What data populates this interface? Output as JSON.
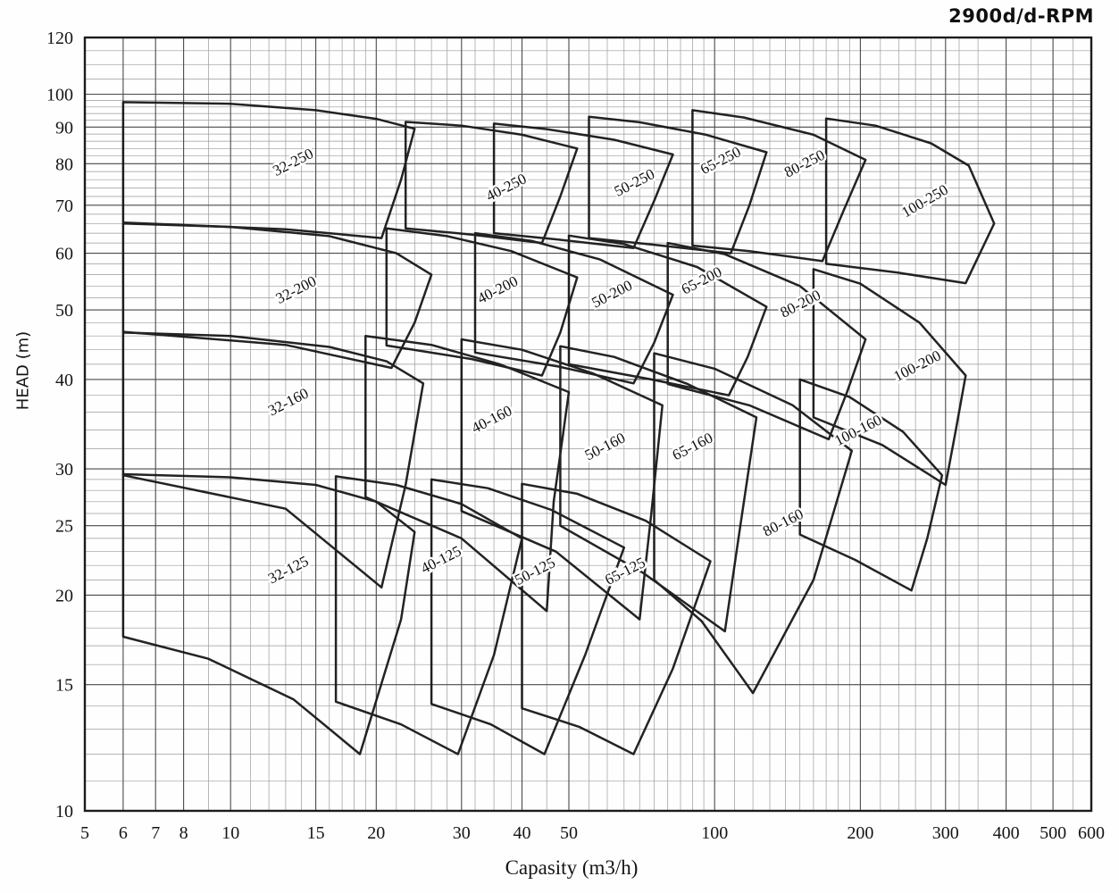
{
  "title": "2900d/d-RPM",
  "chart_data": {
    "type": "line",
    "chart_kind": "pump-selection-envelope-chart",
    "title": "2900d/d-RPM",
    "xlabel": "Capasity (m3/h)",
    "ylabel": "HEAD (m)",
    "x_scale": "log",
    "y_scale": "log",
    "xlim": [
      5,
      600
    ],
    "ylim": [
      10,
      120
    ],
    "grid": true,
    "legend": "none",
    "x_ticks": [
      5,
      6,
      7,
      8,
      10,
      15,
      20,
      30,
      40,
      50,
      100,
      200,
      300,
      400,
      500,
      600
    ],
    "y_ticks": [
      10,
      15,
      20,
      25,
      30,
      40,
      50,
      60,
      70,
      80,
      90,
      100,
      120
    ],
    "x_minor": [
      9,
      11,
      12,
      13,
      14,
      16,
      17,
      18,
      19,
      22,
      24,
      26,
      28,
      32,
      35,
      38,
      45,
      55,
      60,
      65,
      70,
      75,
      80,
      85,
      90,
      95,
      110,
      120,
      130,
      140,
      150,
      160,
      170,
      180,
      190,
      220,
      240,
      260,
      280,
      320,
      350,
      450,
      550
    ],
    "y_minor": [
      11,
      12,
      13,
      14,
      16,
      17,
      18,
      19,
      21,
      22,
      23,
      24,
      26,
      27,
      28,
      29,
      32,
      34,
      36,
      38,
      42,
      44,
      46,
      48,
      52,
      54,
      56,
      58,
      62,
      64,
      66,
      68,
      72,
      74,
      76,
      78,
      82,
      84,
      86,
      88,
      92,
      94,
      96,
      98,
      105,
      110,
      115
    ],
    "line_color": "#161616",
    "grid_minor_color": "#9b9b9b",
    "grid_major_color": "#4a4a4a",
    "envelopes": [
      {
        "name": "32-125",
        "label_at": [
          13.3,
          21.4
        ],
        "label_angle": -27,
        "points": [
          [
            6,
            29.5
          ],
          [
            10,
            29.2
          ],
          [
            15,
            28.5
          ],
          [
            20,
            27
          ],
          [
            24,
            24.5
          ],
          [
            22.5,
            18.5
          ],
          [
            18.5,
            12
          ],
          [
            13.5,
            14.3
          ],
          [
            9,
            16.3
          ],
          [
            6,
            17.5
          ]
        ]
      },
      {
        "name": "40-125",
        "label_at": [
          27.5,
          22.1
        ],
        "label_angle": -27,
        "points": [
          [
            16.5,
            29.3
          ],
          [
            22,
            28.5
          ],
          [
            30,
            26.8
          ],
          [
            40,
            24
          ],
          [
            35,
            16.5
          ],
          [
            29.5,
            12
          ],
          [
            22.5,
            13.2
          ],
          [
            16.5,
            14.2
          ]
        ]
      },
      {
        "name": "50-125",
        "label_at": [
          43,
          21.3
        ],
        "label_angle": -27,
        "points": [
          [
            26,
            29
          ],
          [
            34,
            28.2
          ],
          [
            46,
            26.3
          ],
          [
            65,
            23.3
          ],
          [
            54,
            16.5
          ],
          [
            44.5,
            12
          ],
          [
            34.5,
            13.2
          ],
          [
            26,
            14.1
          ]
        ]
      },
      {
        "name": "65-125",
        "label_at": [
          66,
          21.3
        ],
        "label_angle": -27,
        "points": [
          [
            40,
            28.6
          ],
          [
            52,
            27.7
          ],
          [
            72,
            25.4
          ],
          [
            98,
            22.3
          ],
          [
            82,
            15.8
          ],
          [
            68,
            12
          ],
          [
            52.5,
            13.1
          ],
          [
            40,
            13.9
          ]
        ]
      },
      {
        "name": "32-160",
        "label_at": [
          13.3,
          36.7
        ],
        "label_angle": -27,
        "points": [
          [
            6,
            46.5
          ],
          [
            10,
            46
          ],
          [
            16,
            44.4
          ],
          [
            21,
            42.4
          ],
          [
            25,
            39.5
          ],
          [
            23,
            28.5
          ],
          [
            20.5,
            20.5
          ],
          [
            13,
            26.4
          ],
          [
            6,
            29.4
          ]
        ]
      },
      {
        "name": "40-160",
        "label_at": [
          35,
          34.7
        ],
        "label_angle": -27,
        "points": [
          [
            19,
            46
          ],
          [
            26,
            44.7
          ],
          [
            36,
            42
          ],
          [
            50,
            38.4
          ],
          [
            46.5,
            27
          ],
          [
            45,
            19
          ],
          [
            30,
            24
          ],
          [
            19,
            27.4
          ]
        ]
      },
      {
        "name": "50-160",
        "label_at": [
          60,
          31.8
        ],
        "label_angle": -27,
        "points": [
          [
            30,
            45.5
          ],
          [
            40,
            44
          ],
          [
            56,
            40.8
          ],
          [
            78,
            36.8
          ],
          [
            74,
            26
          ],
          [
            70,
            18.5
          ],
          [
            47,
            23
          ],
          [
            30,
            26.2
          ]
        ]
      },
      {
        "name": "65-160",
        "label_at": [
          91,
          31.8
        ],
        "label_angle": -27,
        "points": [
          [
            48,
            44.5
          ],
          [
            62,
            43
          ],
          [
            88,
            39.4
          ],
          [
            122,
            35.4
          ],
          [
            112,
            24
          ],
          [
            105,
            17.8
          ],
          [
            71,
            21.5
          ],
          [
            48,
            25
          ]
        ]
      },
      {
        "name": "80-160",
        "label_at": [
          140,
          24.9
        ],
        "label_angle": -27,
        "points": [
          [
            75,
            43.5
          ],
          [
            100,
            41.4
          ],
          [
            145,
            36.8
          ],
          [
            192,
            31.8
          ],
          [
            160,
            21
          ],
          [
            120,
            14.6
          ],
          [
            94,
            18.4
          ],
          [
            75,
            21
          ]
        ]
      },
      {
        "name": "100-160",
        "label_at": [
          200,
          33.5
        ],
        "label_angle": -27,
        "points": [
          [
            150,
            40
          ],
          [
            190,
            37.8
          ],
          [
            245,
            33.8
          ],
          [
            295,
            29.4
          ],
          [
            275,
            24
          ],
          [
            255,
            20.3
          ],
          [
            195,
            22.4
          ],
          [
            150,
            24.3
          ]
        ]
      },
      {
        "name": "32-200",
        "label_at": [
          13.8,
          52.6
        ],
        "label_angle": -27,
        "points": [
          [
            6,
            66
          ],
          [
            10,
            65.3
          ],
          [
            16,
            63.4
          ],
          [
            22,
            60
          ],
          [
            26,
            56
          ],
          [
            24,
            48
          ],
          [
            21.5,
            41.5
          ],
          [
            13,
            44.7
          ],
          [
            6,
            46.6
          ]
        ]
      },
      {
        "name": "40-200",
        "label_at": [
          36,
          52.6
        ],
        "label_angle": -27,
        "points": [
          [
            21,
            65
          ],
          [
            28,
            63.4
          ],
          [
            38,
            60.4
          ],
          [
            52,
            55.5
          ],
          [
            48,
            46.5
          ],
          [
            44,
            40.5
          ],
          [
            31.5,
            42.7
          ],
          [
            21,
            44.6
          ]
        ]
      },
      {
        "name": "50-200",
        "label_at": [
          62,
          51.9
        ],
        "label_angle": -27,
        "points": [
          [
            32,
            64
          ],
          [
            42,
            62.4
          ],
          [
            58,
            58.8
          ],
          [
            82,
            52.5
          ],
          [
            75,
            45
          ],
          [
            68,
            39.5
          ],
          [
            47.5,
            41.7
          ],
          [
            32,
            43.6
          ]
        ]
      },
      {
        "name": "65-200",
        "label_at": [
          95,
          54.2
        ],
        "label_angle": -27,
        "points": [
          [
            50,
            63.5
          ],
          [
            65,
            61.8
          ],
          [
            92,
            57.4
          ],
          [
            128,
            50.5
          ],
          [
            117,
            43
          ],
          [
            107,
            38
          ],
          [
            74,
            40
          ],
          [
            50,
            42
          ]
        ]
      },
      {
        "name": "80-200",
        "label_at": [
          152,
          50.3
        ],
        "label_angle": -27,
        "points": [
          [
            80,
            62
          ],
          [
            105,
            59.8
          ],
          [
            150,
            54
          ],
          [
            205,
            45.5
          ],
          [
            188,
            38.5
          ],
          [
            172,
            33
          ],
          [
            118,
            36.8
          ],
          [
            80,
            39.4
          ]
        ]
      },
      {
        "name": "100-200",
        "label_at": [
          265,
          41.2
        ],
        "label_angle": -27,
        "points": [
          [
            160,
            57
          ],
          [
            200,
            54.4
          ],
          [
            265,
            48
          ],
          [
            330,
            40.5
          ],
          [
            315,
            34
          ],
          [
            300,
            28.5
          ],
          [
            222,
            32.4
          ],
          [
            160,
            35.4
          ]
        ]
      },
      {
        "name": "32-250",
        "label_at": [
          13.6,
          79.3
        ],
        "label_angle": -27,
        "points": [
          [
            6,
            97.5
          ],
          [
            10,
            97
          ],
          [
            15,
            95
          ],
          [
            20,
            92.4
          ],
          [
            24,
            89.5
          ],
          [
            22.5,
            76
          ],
          [
            20.5,
            63
          ],
          [
            13,
            64.8
          ],
          [
            6,
            66.2
          ]
        ]
      },
      {
        "name": "40-250",
        "label_at": [
          37.5,
          73.1
        ],
        "label_angle": -27,
        "points": [
          [
            23,
            91.5
          ],
          [
            30,
            90.4
          ],
          [
            40,
            87.8
          ],
          [
            52,
            84
          ],
          [
            48,
            72
          ],
          [
            44,
            62
          ],
          [
            31.5,
            63.7
          ],
          [
            23,
            65
          ]
        ]
      },
      {
        "name": "50-250",
        "label_at": [
          69,
          74.2
        ],
        "label_angle": -27,
        "points": [
          [
            35,
            91
          ],
          [
            45,
            89.4
          ],
          [
            62,
            86.4
          ],
          [
            82,
            82.4
          ],
          [
            75,
            71
          ],
          [
            68,
            61
          ],
          [
            47.5,
            62.7
          ],
          [
            35,
            64
          ]
        ]
      },
      {
        "name": "65-250",
        "label_at": [
          104,
          79.7
        ],
        "label_angle": -27,
        "points": [
          [
            55,
            93
          ],
          [
            70,
            91.4
          ],
          [
            96,
            87.8
          ],
          [
            128,
            83
          ],
          [
            118,
            70
          ],
          [
            108,
            60
          ],
          [
            74,
            61.7
          ],
          [
            55,
            63
          ]
        ]
      },
      {
        "name": "80-250",
        "label_at": [
          155,
          78.9
        ],
        "label_angle": -27,
        "points": [
          [
            90,
            95
          ],
          [
            115,
            92.8
          ],
          [
            160,
            87.8
          ],
          [
            205,
            81
          ],
          [
            185,
            69
          ],
          [
            167,
            58.5
          ],
          [
            118,
            60.4
          ],
          [
            90,
            61.5
          ]
        ]
      },
      {
        "name": "100-250",
        "label_at": [
          275,
          70
        ],
        "label_angle": -30,
        "points": [
          [
            170,
            92.5
          ],
          [
            215,
            90.4
          ],
          [
            280,
            85.4
          ],
          [
            335,
            79.5
          ],
          [
            378,
            66
          ],
          [
            330,
            54.5
          ],
          [
            238,
            56.4
          ],
          [
            170,
            58
          ]
        ]
      }
    ]
  }
}
